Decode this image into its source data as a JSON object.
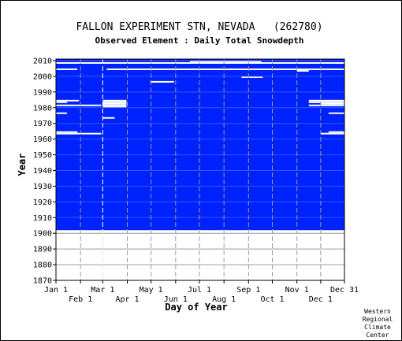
{
  "chart_data": {
    "type": "heatmap",
    "title": "FALLON EXPERIMENT STN, NEVADA   (262780)",
    "subtitle": "Observed Element : Daily Total Snowdepth",
    "xlabel": "Day of Year",
    "ylabel": "Year",
    "x_ticks_row1": [
      "Jan 1",
      "Mar 1",
      "May 1",
      "Jul 1",
      "Sep 1",
      "Nov 1",
      "Dec 31"
    ],
    "x_ticks_row1_doy": [
      1,
      60,
      121,
      182,
      244,
      305,
      365
    ],
    "x_ticks_row2": [
      "Feb 1",
      "Apr 1",
      "Jun 1",
      "Aug 1",
      "Oct 1",
      "Dec 1"
    ],
    "x_ticks_row2_doy": [
      32,
      91,
      152,
      213,
      274,
      335
    ],
    "y_ticks": [
      1870,
      1880,
      1890,
      1900,
      1910,
      1920,
      1930,
      1940,
      1950,
      1960,
      1970,
      1980,
      1990,
      2000,
      2010
    ],
    "xlim": [
      1,
      365
    ],
    "ylim": [
      1870,
      2011
    ],
    "data_coverage": {
      "start_year": 1903,
      "end_year": 2011,
      "fill_color": "#0022ff",
      "missing_color": "#ffffff"
    },
    "missing_periods": [
      {
        "year": 2009,
        "start_doy": 1,
        "end_doy": 365
      },
      {
        "year": 2005,
        "start_doy": 1,
        "end_doy": 28
      },
      {
        "year": 2005,
        "start_doy": 65,
        "end_doy": 365
      },
      {
        "year": 2010,
        "start_doy": 170,
        "end_doy": 260
      },
      {
        "year": 2004,
        "start_doy": 305,
        "end_doy": 320
      },
      {
        "year": 2000,
        "start_doy": 235,
        "end_doy": 262
      },
      {
        "year": 1997,
        "start_doy": 120,
        "end_doy": 150
      },
      {
        "year": 1985,
        "start_doy": 1,
        "end_doy": 30
      },
      {
        "year": 1985,
        "start_doy": 60,
        "end_doy": 90
      },
      {
        "year": 1985,
        "start_doy": 320,
        "end_doy": 365
      },
      {
        "year": 1984,
        "start_doy": 1,
        "end_doy": 15
      },
      {
        "year": 1984,
        "start_doy": 60,
        "end_doy": 90
      },
      {
        "year": 1984,
        "start_doy": 320,
        "end_doy": 365
      },
      {
        "year": 1983,
        "start_doy": 60,
        "end_doy": 90
      },
      {
        "year": 1983,
        "start_doy": 335,
        "end_doy": 365
      },
      {
        "year": 1982,
        "start_doy": 1,
        "end_doy": 58
      },
      {
        "year": 1982,
        "start_doy": 60,
        "end_doy": 90
      },
      {
        "year": 1982,
        "start_doy": 320,
        "end_doy": 365
      },
      {
        "year": 1981,
        "start_doy": 60,
        "end_doy": 90
      },
      {
        "year": 1977,
        "start_doy": 1,
        "end_doy": 15
      },
      {
        "year": 1977,
        "start_doy": 345,
        "end_doy": 365
      },
      {
        "year": 1974,
        "start_doy": 60,
        "end_doy": 75
      },
      {
        "year": 1965,
        "start_doy": 1,
        "end_doy": 28
      },
      {
        "year": 1965,
        "start_doy": 345,
        "end_doy": 365
      },
      {
        "year": 1964,
        "start_doy": 1,
        "end_doy": 58
      },
      {
        "year": 1964,
        "start_doy": 335,
        "end_doy": 365
      }
    ],
    "credit": [
      "Western",
      "Regional",
      "Climate",
      "Center"
    ]
  }
}
